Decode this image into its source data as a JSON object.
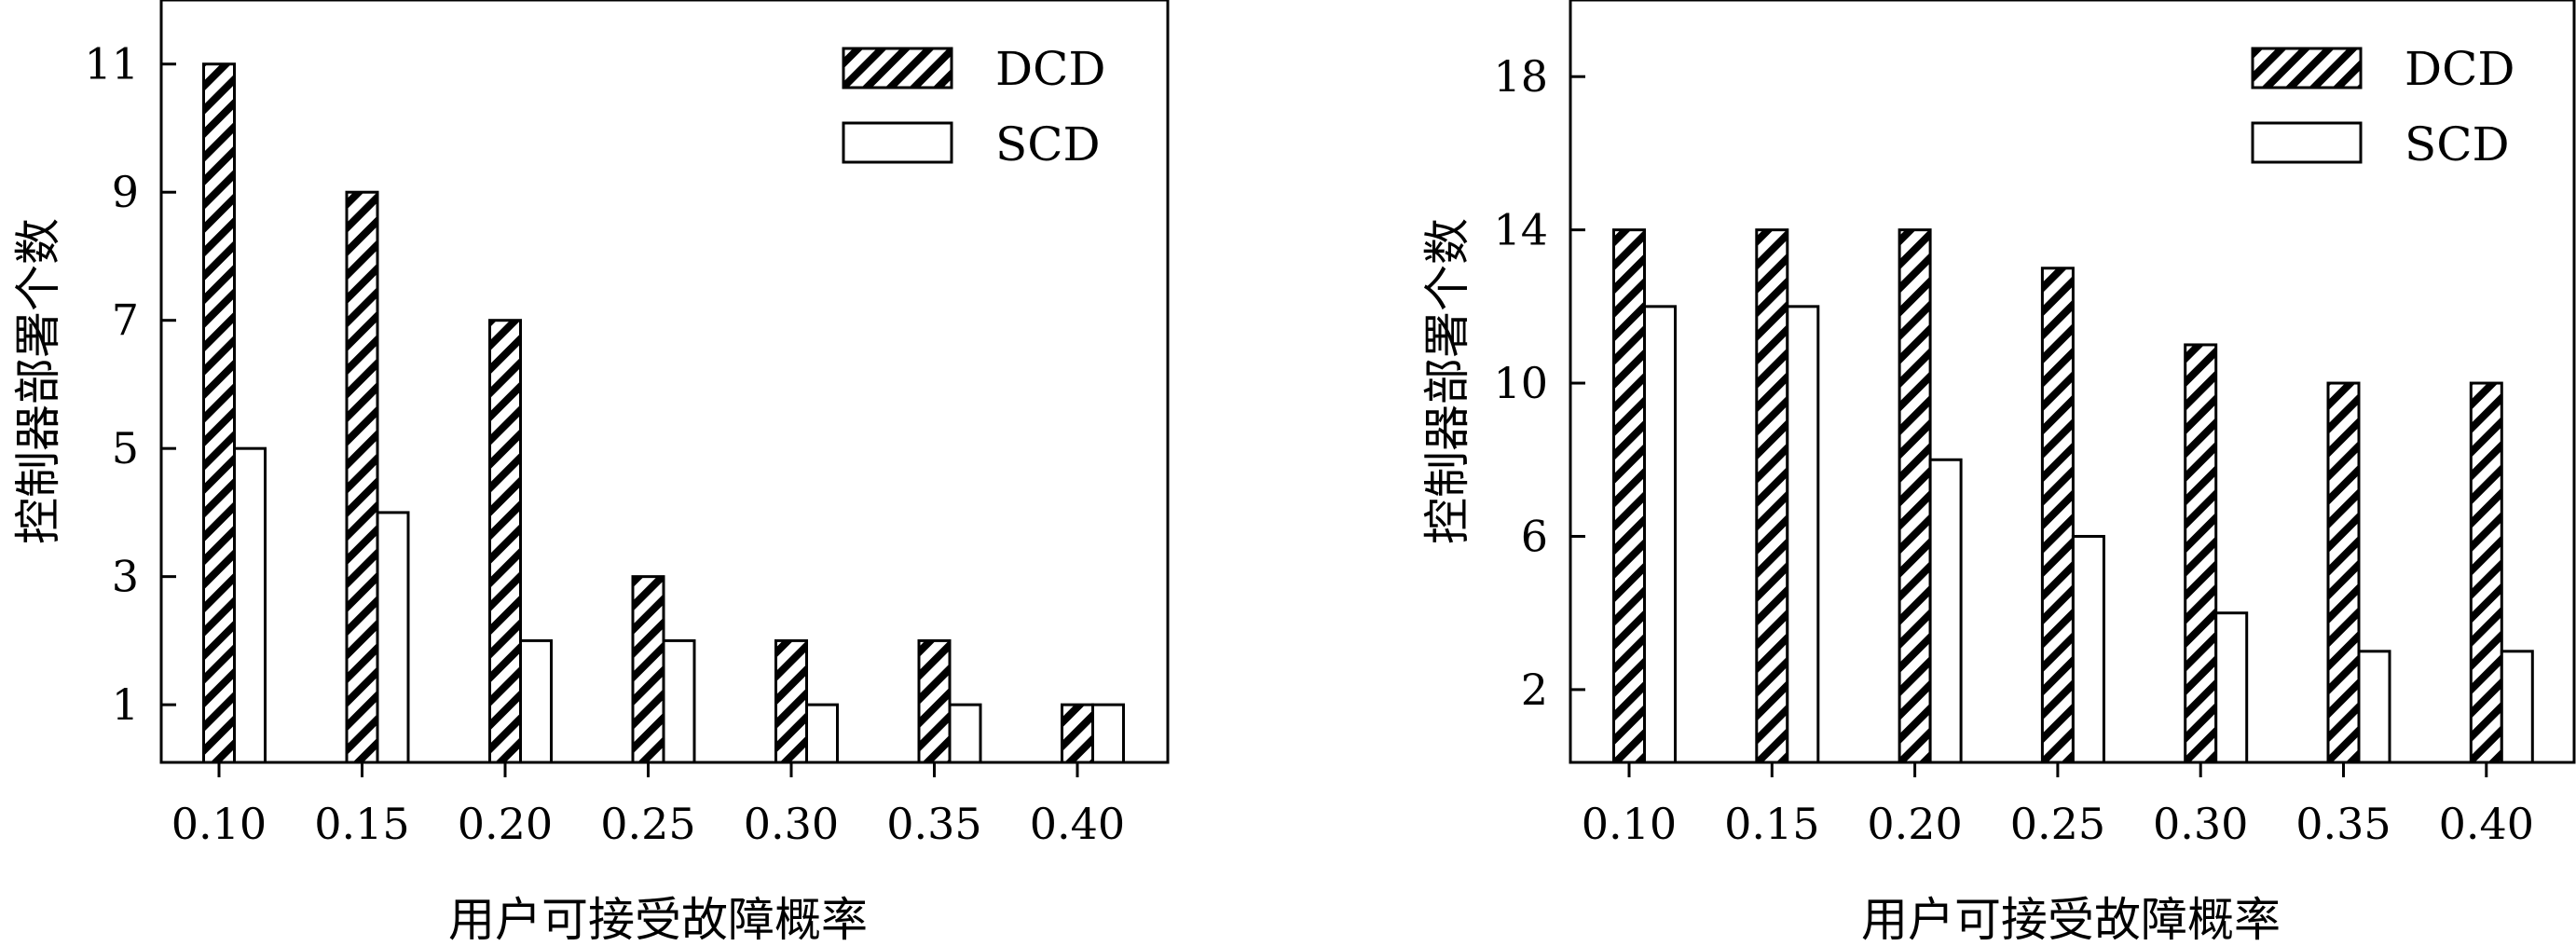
{
  "chart_data": [
    {
      "type": "bar",
      "categories": [
        "0.10",
        "0.15",
        "0.20",
        "0.25",
        "0.30",
        "0.35",
        "0.40"
      ],
      "series": [
        {
          "name": "DCD",
          "values": [
            11,
            9,
            7,
            3,
            2,
            2,
            1
          ],
          "pattern": "hatch"
        },
        {
          "name": "SCD",
          "values": [
            5,
            4,
            2,
            2,
            1,
            1,
            1
          ],
          "pattern": "white"
        }
      ],
      "xlabel": "用户可接受故障概率",
      "ylabel": "控制器部署个数",
      "ylim": [
        0.1,
        12
      ],
      "yticks": [
        1,
        3,
        5,
        7,
        9,
        11
      ],
      "legend": "top-right"
    },
    {
      "type": "bar",
      "categories": [
        "0.10",
        "0.15",
        "0.20",
        "0.25",
        "0.30",
        "0.35",
        "0.40"
      ],
      "series": [
        {
          "name": "DCD",
          "values": [
            14,
            14,
            14,
            13,
            11,
            10,
            10
          ],
          "pattern": "hatch"
        },
        {
          "name": "SCD",
          "values": [
            12,
            12,
            8,
            6,
            4,
            3,
            3
          ],
          "pattern": "white"
        }
      ],
      "xlabel": "用户可接受故障概率",
      "ylabel": "控制器部署个数",
      "ylim": [
        0.1,
        20
      ],
      "yticks": [
        2,
        6,
        10,
        14,
        18
      ],
      "legend": "top-right"
    }
  ],
  "colors": {
    "axis": "#000000",
    "hatch_fill": "#ffffff",
    "hatch_line": "#000000",
    "plain_fill": "#ffffff"
  }
}
